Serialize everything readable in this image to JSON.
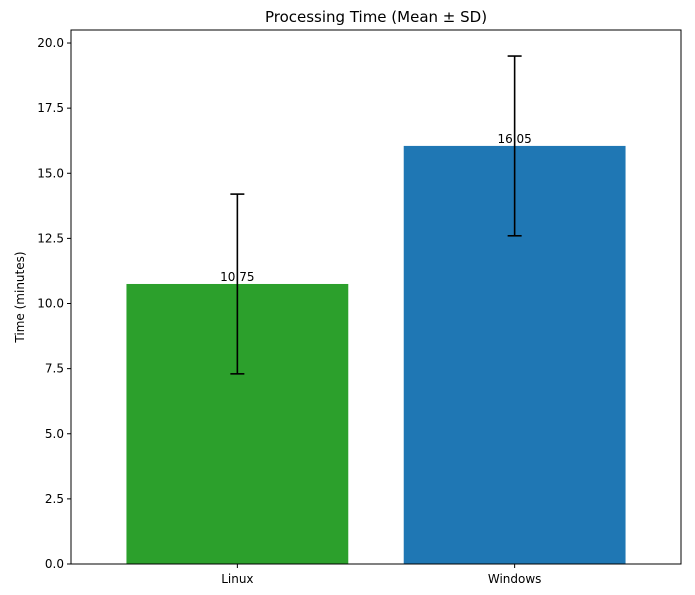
{
  "chart_data": {
    "type": "bar",
    "title": "Processing Time (Mean ± SD)",
    "xlabel": "",
    "ylabel": "Time (minutes)",
    "categories": [
      "Linux",
      "Windows"
    ],
    "values": [
      10.75,
      16.05
    ],
    "errors": [
      3.45,
      3.45
    ],
    "data_labels": [
      "10.75",
      "16.05"
    ],
    "bar_colors": [
      "#2ca02c",
      "#1f77b4"
    ],
    "ylim": [
      0,
      20.5
    ],
    "yticks": [
      0.0,
      2.5,
      5.0,
      7.5,
      10.0,
      12.5,
      15.0,
      17.5,
      20.0
    ],
    "ytick_labels": [
      "0.0",
      "2.5",
      "5.0",
      "7.5",
      "10.0",
      "12.5",
      "15.0",
      "17.5",
      "20.0"
    ],
    "grid": false,
    "legend": "none"
  }
}
